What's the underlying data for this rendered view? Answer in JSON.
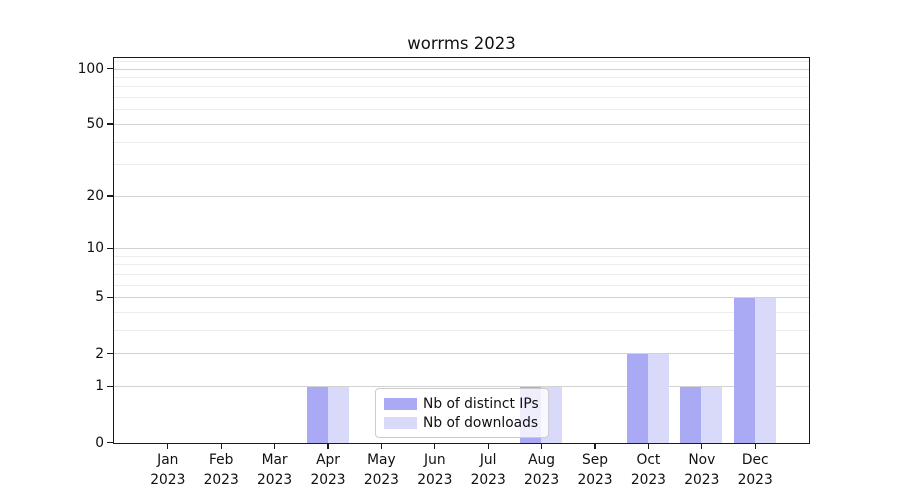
{
  "figure": {
    "background_color": "#ffffff",
    "axis_color": "#1a1a1a",
    "major_grid_color": "#d2d2d2",
    "minor_grid_color": "#ececec"
  },
  "legend": {
    "items": [
      {
        "label": "Nb of distinct IPs",
        "swatch_color": "#aaaaf4"
      },
      {
        "label": "Nb of downloads",
        "swatch_color": "#d9d9fa"
      }
    ]
  },
  "chart_data": {
    "type": "bar",
    "title": "worrms 2023",
    "xlabel": "",
    "ylabel": "",
    "categories": [
      "Jan",
      "Feb",
      "Mar",
      "Apr",
      "May",
      "Jun",
      "Jul",
      "Aug",
      "Sep",
      "Oct",
      "Nov",
      "Dec"
    ],
    "category_year": "2023",
    "series": [
      {
        "name": "Nb of distinct IPs",
        "color": "#aaaaf4",
        "values": [
          0,
          0,
          0,
          1,
          0,
          0,
          0,
          1,
          0,
          2,
          1,
          5
        ]
      },
      {
        "name": "Nb of downloads",
        "color": "#d9d9fa",
        "values": [
          0,
          0,
          0,
          1,
          0,
          0,
          0,
          1,
          0,
          2,
          1,
          5
        ]
      }
    ],
    "yscale": "log1p",
    "ylim": [
      0,
      118
    ],
    "y_ticks": [
      0,
      1,
      2,
      5,
      10,
      20,
      50,
      100
    ],
    "y_minor_gridlines": [
      3,
      4,
      6,
      7,
      8,
      9,
      30,
      40,
      60,
      70,
      80,
      90,
      110
    ],
    "grid": true,
    "legend_position": "lower-center-inside"
  }
}
